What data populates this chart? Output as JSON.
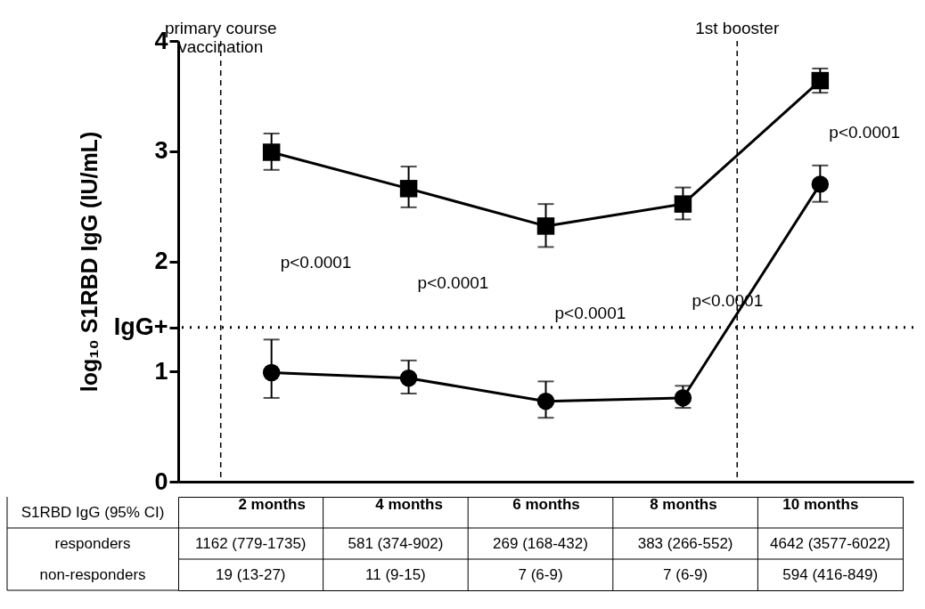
{
  "chart_data": [
    {
      "type": "line",
      "ylabel": "log₁₀ S1RBD IgG (IU/mL)",
      "x": [
        2,
        4,
        6,
        8,
        10
      ],
      "xlim": [
        0.64,
        11.36
      ],
      "xticks": [
        {
          "value": 2,
          "label": "2 months"
        },
        {
          "value": 4,
          "label": "4 months"
        },
        {
          "value": 6,
          "label": "6 months"
        },
        {
          "value": 8,
          "label": "8 months"
        },
        {
          "value": 10,
          "label": "10 months"
        }
      ],
      "ylim": [
        0,
        4
      ],
      "yticks": [
        0,
        1,
        {
          "value": 1.4,
          "label": "IgG+"
        },
        2,
        3,
        4
      ],
      "series": [
        {
          "color": "#000000",
          "marker": "square",
          "values": [
            2.99,
            2.66,
            2.32,
            2.52,
            3.64
          ],
          "errors": [
            [
              2.83,
              3.16
            ],
            [
              2.49,
              2.86
            ],
            [
              2.13,
              2.52
            ],
            [
              2.38,
              2.67
            ],
            [
              3.53,
              3.75
            ]
          ]
        },
        {
          "color": "#000000",
          "marker": "circle",
          "values": [
            0.99,
            0.94,
            0.73,
            0.76,
            2.7
          ],
          "errors": [
            [
              0.76,
              1.29
            ],
            [
              0.8,
              1.1
            ],
            [
              0.58,
              0.91
            ],
            [
              0.67,
              0.87
            ],
            [
              2.54,
              2.87
            ]
          ]
        }
      ],
      "ref_lines": [
        {
          "axis": "x",
          "value": 1.26,
          "label": "primary course\nvaccination",
          "line_style": "dashed"
        },
        {
          "axis": "x",
          "value": 8.79,
          "label": "1st booster",
          "line_style": "dashed"
        },
        {
          "axis": "y",
          "value": 1.4,
          "line_style": "dotted"
        }
      ],
      "annotations": [
        "p<0.0001",
        "p<0.0001",
        "p<0.0001",
        "p<0.0001",
        "p<0.0001"
      ],
      "grid": false
    },
    {
      "type": "other",
      "annotations": [
        "S1RBD IgG (95% CI)"
      ],
      "y_categories": [
        "responders",
        "non-responders"
      ],
      "cell_labels": [
        [
          "1162 (779-1735)",
          "581 (374-902)",
          "269 (168-432)",
          "383 (266-552)",
          "4642 (3577-6022)"
        ],
        [
          "19 (13-27)",
          "11 (9-15)",
          "7 (6-9)",
          "7 (6-9)",
          "594 (416-849)"
        ]
      ]
    }
  ]
}
